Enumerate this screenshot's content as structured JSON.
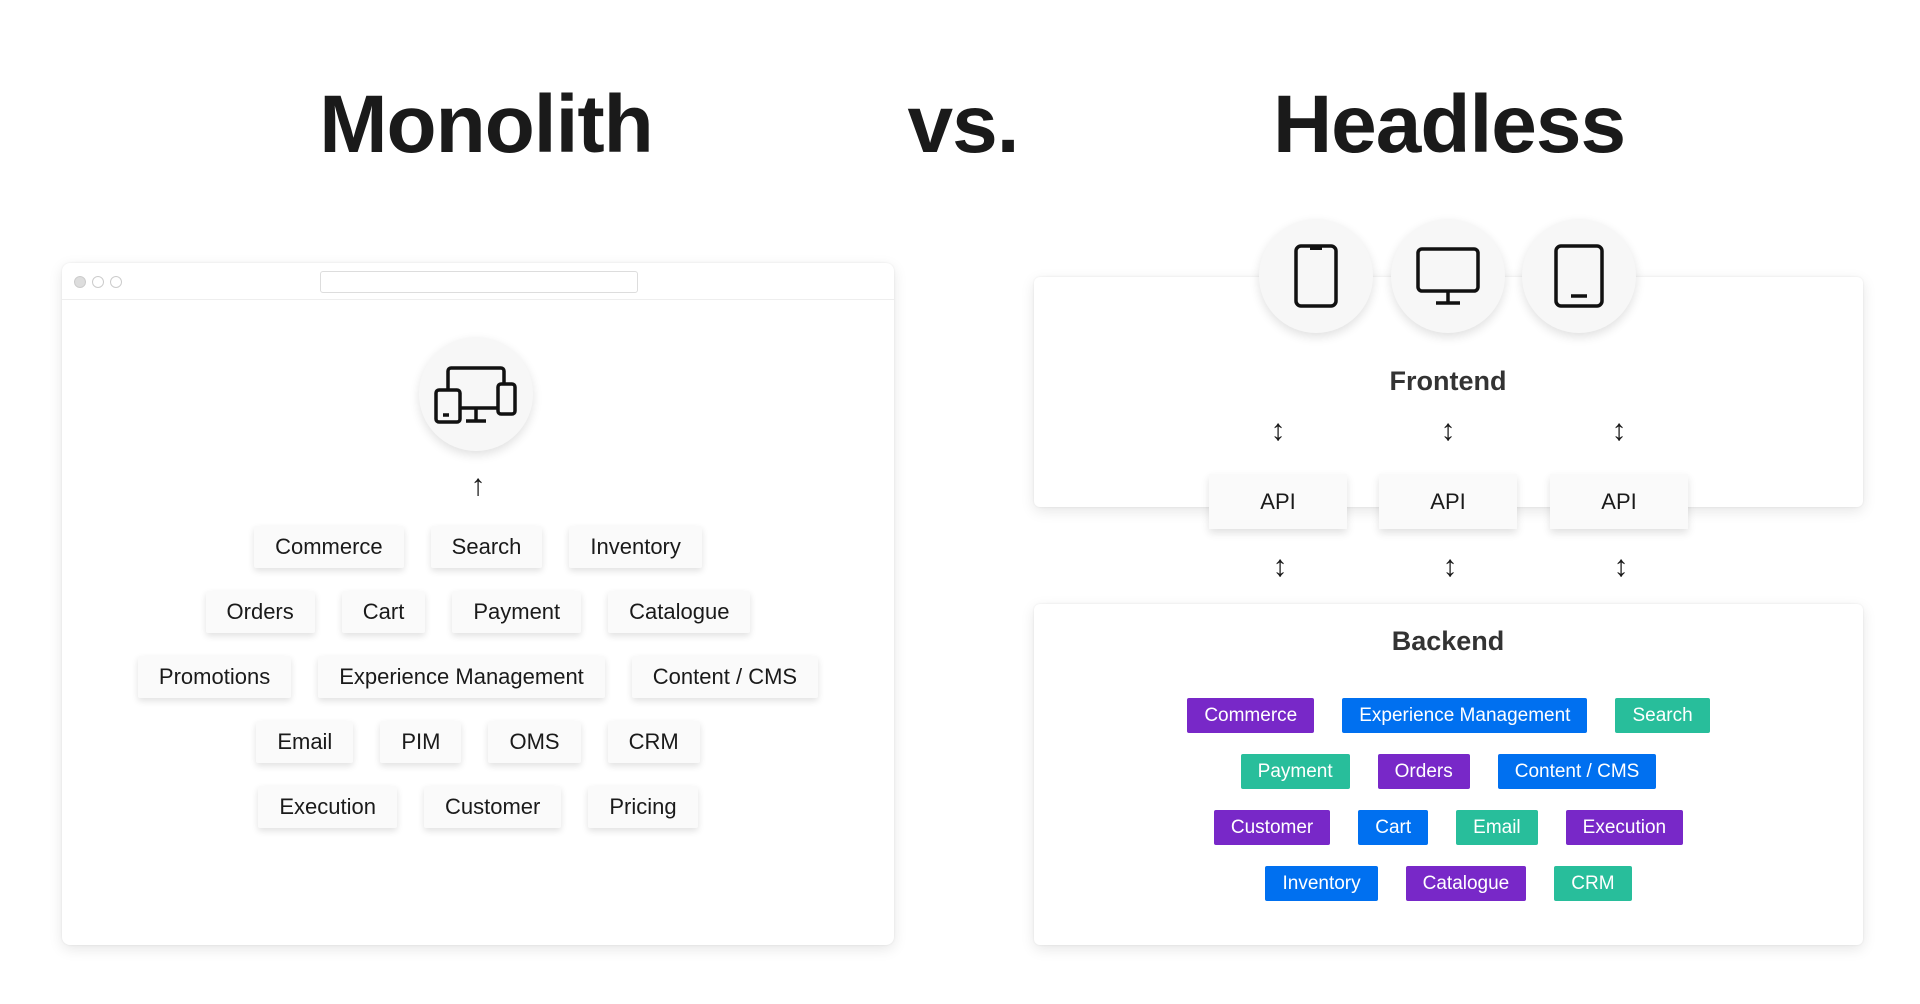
{
  "titles": {
    "left": "Monolith",
    "middle": "vs.",
    "right": "Headless"
  },
  "monolith": {
    "icon": "multi-device-icon",
    "rows": [
      [
        "Commerce",
        "Search",
        "Inventory"
      ],
      [
        "Orders",
        "Cart",
        "Payment",
        "Catalogue"
      ],
      [
        "Promotions",
        "Experience Management",
        "Content / CMS"
      ],
      [
        "Email",
        "PIM",
        "OMS",
        "CRM"
      ],
      [
        "Execution",
        "Customer",
        "Pricing"
      ]
    ]
  },
  "headless": {
    "devices": [
      "smartphone-icon",
      "desktop-monitor-icon",
      "tablet-icon"
    ],
    "frontend_label": "Frontend",
    "api_labels": [
      "API",
      "API",
      "API"
    ],
    "backend_label": "Backend",
    "colors": {
      "purple": "#7828C8",
      "blue": "#0070F0",
      "teal": "#28BE9B"
    },
    "rows": [
      [
        {
          "label": "Commerce",
          "color": "purple"
        },
        {
          "label": "Experience Management",
          "color": "blue"
        },
        {
          "label": "Search",
          "color": "teal"
        }
      ],
      [
        {
          "label": "Payment",
          "color": "teal"
        },
        {
          "label": "Orders",
          "color": "purple"
        },
        {
          "label": "Content / CMS",
          "color": "blue"
        }
      ],
      [
        {
          "label": "Customer",
          "color": "purple"
        },
        {
          "label": "Cart",
          "color": "blue"
        },
        {
          "label": "Email",
          "color": "teal"
        },
        {
          "label": "Execution",
          "color": "purple"
        }
      ],
      [
        {
          "label": "Inventory",
          "color": "blue"
        },
        {
          "label": "Catalogue",
          "color": "purple"
        },
        {
          "label": "CRM",
          "color": "teal"
        }
      ]
    ]
  }
}
